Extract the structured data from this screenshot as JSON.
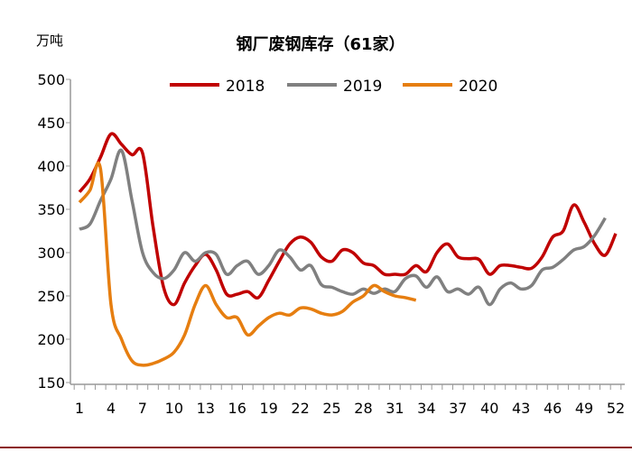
{
  "chart_data": {
    "type": "line",
    "title": "钢厂废钢库存（61家）",
    "ylabel": "万吨",
    "xlabel": "",
    "ylim": [
      150,
      500
    ],
    "yticks": [
      150,
      200,
      250,
      300,
      350,
      400,
      450,
      500
    ],
    "xlim": [
      1,
      52
    ],
    "xticks": [
      1,
      4,
      7,
      10,
      13,
      16,
      19,
      22,
      25,
      28,
      31,
      34,
      37,
      40,
      43,
      46,
      49,
      52
    ],
    "grid": false,
    "legend": "top",
    "series": [
      {
        "name": "2018",
        "color": "#c00000",
        "values": [
          370,
          385,
          410,
          437,
          425,
          413,
          415,
          330,
          260,
          240,
          265,
          285,
          298,
          280,
          252,
          252,
          255,
          248,
          268,
          290,
          310,
          318,
          312,
          295,
          290,
          303,
          300,
          288,
          285,
          275,
          275,
          275,
          285,
          278,
          300,
          310,
          295,
          293,
          292,
          275,
          285,
          285,
          283,
          282,
          295,
          318,
          325,
          355,
          335,
          310,
          297,
          322
        ]
      },
      {
        "name": "2019",
        "color": "#808080",
        "values": [
          327,
          333,
          360,
          385,
          418,
          360,
          300,
          277,
          270,
          280,
          300,
          290,
          300,
          298,
          275,
          285,
          290,
          275,
          285,
          303,
          295,
          280,
          285,
          263,
          260,
          255,
          252,
          258,
          253,
          258,
          255,
          270,
          273,
          260,
          272,
          255,
          258,
          252,
          260,
          240,
          258,
          265,
          258,
          262,
          280,
          283,
          292,
          303,
          307,
          320,
          340
        ]
      },
      {
        "name": "2020",
        "color": "#e67e10",
        "values": [
          358,
          372,
          397,
          240,
          200,
          175,
          170,
          172,
          177,
          185,
          205,
          240,
          262,
          240,
          225,
          225,
          205,
          215,
          225,
          230,
          228,
          236,
          235,
          230,
          228,
          232,
          243,
          250,
          262,
          255,
          250,
          248,
          245
        ]
      }
    ]
  }
}
